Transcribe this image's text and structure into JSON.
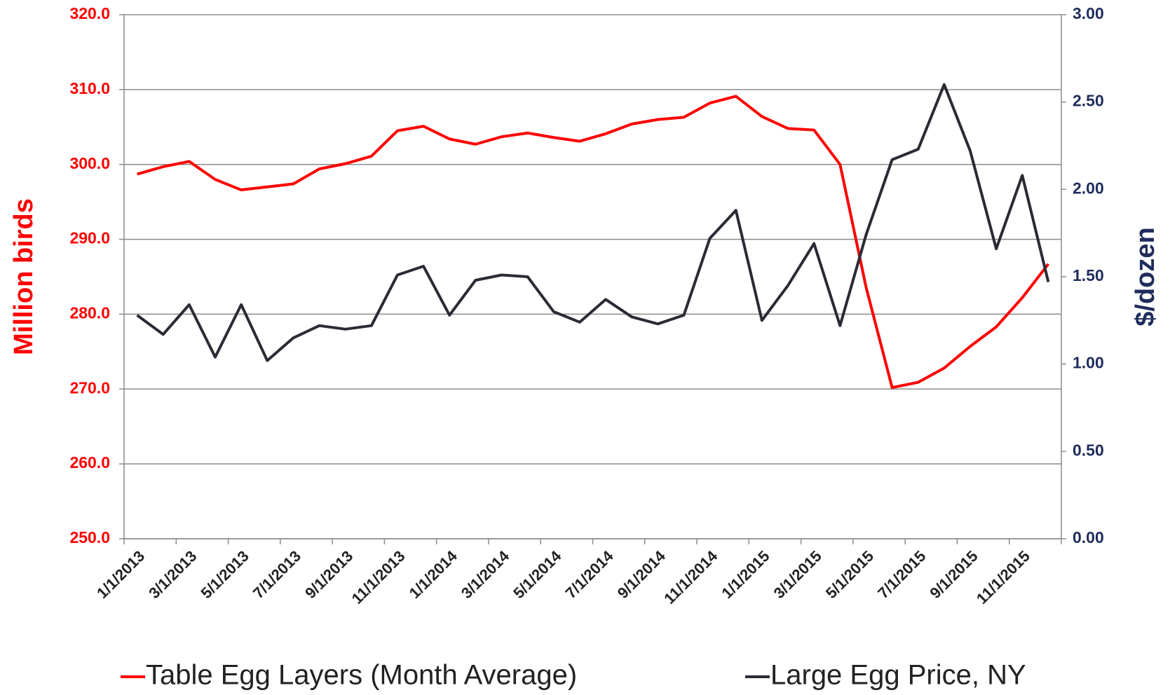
{
  "chart_data": {
    "type": "line",
    "categories": [
      "1/1/2013",
      null,
      "3/1/2013",
      null,
      "5/1/2013",
      null,
      "7/1/2013",
      null,
      "9/1/2013",
      null,
      "11/1/2013",
      null,
      "1/1/2014",
      null,
      "3/1/2014",
      null,
      "5/1/2014",
      null,
      "7/1/2014",
      null,
      "9/1/2014",
      null,
      "11/1/2014",
      null,
      "1/1/2015",
      null,
      "3/1/2015",
      null,
      "5/1/2015",
      null,
      "7/1/2015",
      null,
      "9/1/2015",
      null,
      "11/1/2015",
      null
    ],
    "series": [
      {
        "name": "Table Egg Layers (Month Average)",
        "color": "#ff0000",
        "axis": "y",
        "values": [
          298.7,
          299.7,
          300.4,
          298.0,
          296.6,
          297.0,
          297.4,
          299.4,
          300.1,
          301.1,
          304.5,
          305.1,
          303.4,
          302.7,
          303.7,
          304.2,
          303.6,
          303.1,
          304.1,
          305.4,
          306.0,
          306.3,
          308.2,
          309.1,
          306.4,
          304.8,
          304.6,
          300.0,
          283.6,
          270.2,
          270.9,
          272.8,
          275.7,
          278.3,
          282.2,
          286.7
        ]
      },
      {
        "name": "Large Egg Price, NY",
        "color": "#2b2b36",
        "axis": "y2",
        "values": [
          1.28,
          1.17,
          1.34,
          1.04,
          1.34,
          1.02,
          1.15,
          1.22,
          1.2,
          1.22,
          1.51,
          1.56,
          1.28,
          1.48,
          1.51,
          1.5,
          1.3,
          1.24,
          1.37,
          1.27,
          1.23,
          1.28,
          1.72,
          1.88,
          1.25,
          1.45,
          1.69,
          1.22,
          1.74,
          2.17,
          2.23,
          2.6,
          2.22,
          1.66,
          2.08,
          1.47
        ]
      }
    ],
    "ylabel": "Million birds",
    "y2label": "$/dozen",
    "ylim": [
      250,
      320
    ],
    "yticks": [
      {
        "value": 250,
        "label": "250.0"
      },
      {
        "value": 260,
        "label": "260.0"
      },
      {
        "value": 270,
        "label": "270.0"
      },
      {
        "value": 280,
        "label": "280.0"
      },
      {
        "value": 290,
        "label": "290.0"
      },
      {
        "value": 300,
        "label": "300.0"
      },
      {
        "value": 310,
        "label": "310.0"
      },
      {
        "value": 320,
        "label": "320.0"
      }
    ],
    "y2lim": [
      0,
      3
    ],
    "y2ticks": [
      {
        "value": 0,
        "label": "0.00"
      },
      {
        "value": 0.5,
        "label": "0.50"
      },
      {
        "value": 1,
        "label": "1.00"
      },
      {
        "value": 1.5,
        "label": "1.50"
      },
      {
        "value": 2,
        "label": "2.00"
      },
      {
        "value": 2.5,
        "label": "2.50"
      },
      {
        "value": 3,
        "label": "3.00"
      }
    ],
    "grid": true,
    "legend": "bottom"
  }
}
